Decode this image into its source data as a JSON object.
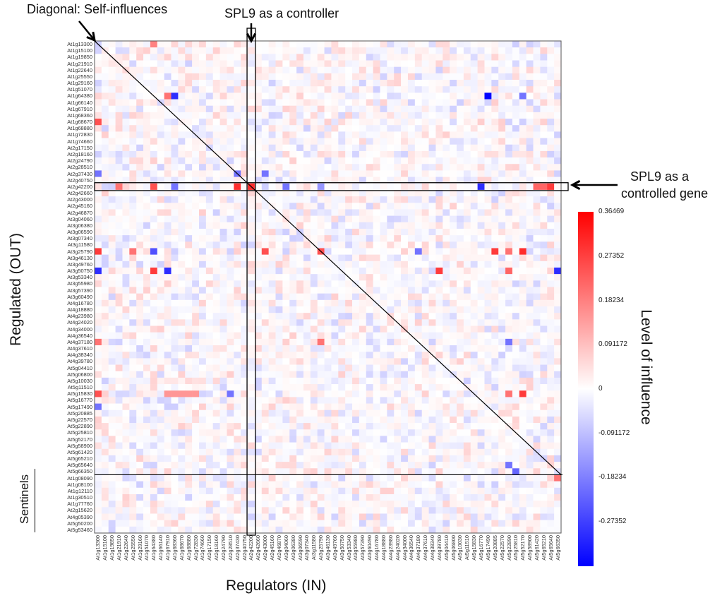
{
  "annotations": {
    "diagonal": "Diagonal: Self-influences",
    "controller": "SPL9 as a controller",
    "controlled_line1": "SPL9 as a",
    "controlled_line2": "controlled gene",
    "sentinels": "Sentinels"
  },
  "colors": {
    "positive": "#ff0000",
    "neutral": "#ffffff",
    "negative": "#0000ff",
    "lines": "#000000"
  },
  "chart_data": {
    "type": "heatmap",
    "title": "",
    "xlabel": "Regulators (IN)",
    "ylabel": "Regulated (OUT)",
    "colorbar_label": "Level of influence",
    "colorbar_ticks": [
      "0.36469",
      "0.27352",
      "0.18234",
      "0.091172",
      "0",
      "-0.091172",
      "-0.18234",
      "-0.27352"
    ],
    "colorbar_tick_values": [
      0.36469,
      0.27352,
      0.18234,
      0.091172,
      0,
      -0.091172,
      -0.18234,
      -0.27352
    ],
    "value_range": [
      -0.36469,
      0.36469
    ],
    "columns": [
      "At1g13300",
      "At1g15100",
      "At1g19850",
      "At1g21910",
      "At1g22640",
      "At1g25550",
      "At1g29160",
      "At1g51070",
      "At1g64380",
      "At1g66140",
      "At1g67910",
      "At1g68360",
      "At1g68670",
      "At1g68880",
      "At1g72830",
      "At1g74660",
      "At2g17150",
      "At2g18160",
      "At2g24790",
      "At2g28510",
      "At2g37430",
      "At2g40750",
      "At2g42200",
      "At2g42660",
      "At2g43000",
      "At2g45160",
      "At2g46870",
      "At3g04060",
      "At3g06380",
      "At3g06590",
      "At3g07340",
      "At3g11580",
      "At3g25790",
      "At3g46130",
      "At3g49760",
      "At3g50750",
      "At3g53340",
      "At3g55980",
      "At3g57390",
      "At3g60490",
      "At4g16780",
      "At4g18880",
      "At4g23980",
      "At4g24020",
      "At4g34000",
      "At4g36540",
      "At4g37180",
      "At4g37610",
      "At4g38340",
      "At4g39780",
      "At5g04410",
      "At5g06800",
      "At5g10030",
      "At5g11510",
      "At5g15830",
      "At5g16770",
      "At5g17490",
      "At5g20885",
      "At5g22570",
      "At5g22890",
      "At5g25810",
      "At5g52170",
      "At5g58900",
      "At5g61420",
      "At5g65210",
      "At5g65640",
      "At5g66350"
    ],
    "rows": [
      "At1g13300",
      "At1g15100",
      "At1g19850",
      "At1g21910",
      "At1g22640",
      "At1g25550",
      "At1g29160",
      "At1g51070",
      "At1g64380",
      "At1g66140",
      "At1g67910",
      "At1g68360",
      "At1g68670",
      "At1g68880",
      "At1g72830",
      "At1g74660",
      "At2g17150",
      "At2g18160",
      "At2g24790",
      "At2g28510",
      "At2g37430",
      "At2g40750",
      "At2g42200",
      "At2g42660",
      "At2g43000",
      "At2g45160",
      "At2g46870",
      "At3g04060",
      "At3g06380",
      "At3g06590",
      "At3g07340",
      "At3g11580",
      "At3g25790",
      "At3g46130",
      "At3g49760",
      "At3g50750",
      "At3g53340",
      "At3g55980",
      "At3g57390",
      "At3g60490",
      "At4g16780",
      "At4g18880",
      "At4g23980",
      "At4g24020",
      "At4g34000",
      "At4g36540",
      "At4g37180",
      "At4g37610",
      "At4g38340",
      "At4g39780",
      "At5g04410",
      "At5g06800",
      "At5g10030",
      "At5g11510",
      "At5g15830",
      "At5g16770",
      "At5g17490",
      "At5g20885",
      "At5g22570",
      "At5g22890",
      "At5g25810",
      "At5g52170",
      "At5g58900",
      "At5g61420",
      "At5g65210",
      "At5g65640",
      "At5g66350",
      "At1g08090",
      "At1g08100",
      "At1g12110",
      "At1g30510",
      "At1g77760",
      "At2g15620",
      "At4g05390",
      "At5g50200",
      "At5g53460"
    ],
    "sentinel_rows": [
      "At1g08090",
      "At1g08100",
      "At1g12110",
      "At1g30510",
      "At1g77760",
      "At2g15620",
      "At4g05390",
      "At5g50200",
      "At5g53460"
    ],
    "highlight": {
      "gene": "At2g42200",
      "name": "SPL9"
    },
    "notable_cells": [
      [
        "At1g64380",
        "At1g67910",
        0.2
      ],
      [
        "At1g64380",
        "At1g68360",
        -0.3
      ],
      [
        "At1g64380",
        "At5g17490",
        -0.36
      ],
      [
        "At1g64380",
        "At5g52170",
        -0.2
      ],
      [
        "At1g68670",
        "At1g13300",
        0.25
      ],
      [
        "At1g13300",
        "At1g64380",
        0.18
      ],
      [
        "At2g37430",
        "At1g13300",
        -0.2
      ],
      [
        "At2g37430",
        "At2g37430",
        -0.2
      ],
      [
        "At2g37430",
        "At2g43000",
        -0.2
      ],
      [
        "At2g42200",
        "At1g21910",
        0.2
      ],
      [
        "At2g42200",
        "At1g64380",
        0.25
      ],
      [
        "At2g42200",
        "At1g68360",
        -0.2
      ],
      [
        "At2g42200",
        "At2g37430",
        0.3
      ],
      [
        "At2g42200",
        "At2g42200",
        0.3
      ],
      [
        "At2g42200",
        "At3g04060",
        -0.2
      ],
      [
        "At2g42200",
        "At3g25790",
        -0.15
      ],
      [
        "At2g42200",
        "At5g16770",
        -0.3
      ],
      [
        "At2g42200",
        "At5g61420",
        0.22
      ],
      [
        "At2g42200",
        "At5g65210",
        0.22
      ],
      [
        "At2g42200",
        "At5g65640",
        0.28
      ],
      [
        "At3g25790",
        "At1g13300",
        0.28
      ],
      [
        "At3g25790",
        "At1g25550",
        0.2
      ],
      [
        "At3g25790",
        "At1g64380",
        -0.25
      ],
      [
        "At3g25790",
        "At2g43000",
        0.25
      ],
      [
        "At3g25790",
        "At3g25790",
        0.25
      ],
      [
        "At3g25790",
        "At4g37180",
        -0.2
      ],
      [
        "At3g25790",
        "At5g20885",
        0.28
      ],
      [
        "At3g25790",
        "At5g22890",
        0.2
      ],
      [
        "At3g25790",
        "At5g52170",
        0.3
      ],
      [
        "At3g50750",
        "At1g13300",
        -0.3
      ],
      [
        "At3g50750",
        "At1g64380",
        0.28
      ],
      [
        "At3g50750",
        "At1g67910",
        -0.3
      ],
      [
        "At3g50750",
        "At4g39780",
        0.28
      ],
      [
        "At3g50750",
        "At5g22890",
        0.22
      ],
      [
        "At3g50750",
        "At5g66350",
        -0.3
      ],
      [
        "At4g37180",
        "At1g13300",
        0.2
      ],
      [
        "At4g37180",
        "At3g25790",
        0.2
      ],
      [
        "At4g37180",
        "At5g22890",
        -0.2
      ],
      [
        "At5g15830",
        "At1g13300",
        0.25
      ],
      [
        "At5g15830",
        "At1g67910",
        0.15
      ],
      [
        "At5g15830",
        "At1g68360",
        0.15
      ],
      [
        "At5g15830",
        "At1g68670",
        0.15
      ],
      [
        "At5g15830",
        "At1g68880",
        0.15
      ],
      [
        "At5g15830",
        "At1g72830",
        0.15
      ],
      [
        "At5g15830",
        "At2g28510",
        -0.2
      ],
      [
        "At5g15830",
        "At5g22890",
        0.2
      ],
      [
        "At5g15830",
        "At5g52170",
        0.28
      ],
      [
        "At5g17490",
        "At1g13300",
        -0.2
      ],
      [
        "At5g66350",
        "At5g25810",
        -0.22
      ],
      [
        "At5g65640",
        "At5g22890",
        -0.2
      ],
      [
        "At1g08090",
        "At5g66350",
        0.2
      ]
    ]
  }
}
